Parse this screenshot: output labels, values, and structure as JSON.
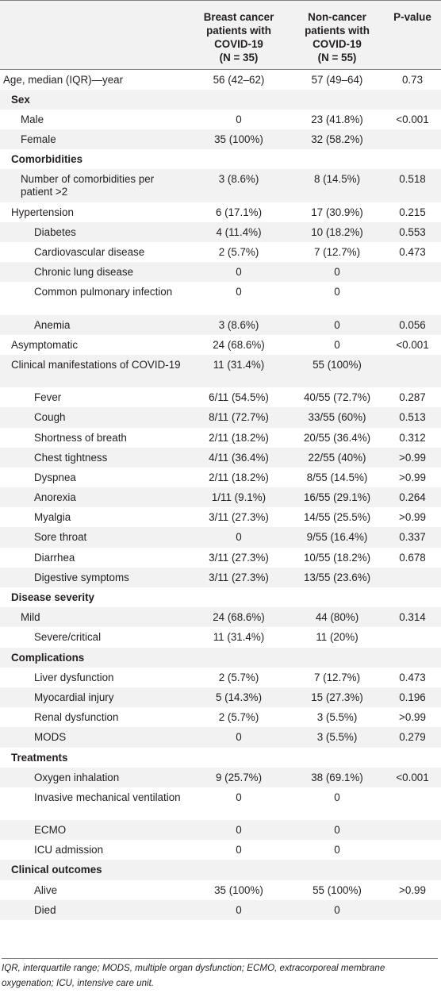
{
  "header": {
    "col_label": "",
    "col1": "Breast cancer patients with COVID-19",
    "col1_n": "(N = 35)",
    "col2": "Non-cancer patients with COVID-19",
    "col2_n": "(N = 55)",
    "col3": "P-value"
  },
  "rows": [
    {
      "label": "Age, median (IQR)—year",
      "bc": "56 (42–62)",
      "nc": "57 (49–64)",
      "p": "0.73"
    },
    {
      "label": "Sex",
      "bc": "",
      "nc": "",
      "p": ""
    },
    {
      "label": "Male",
      "bc": "0",
      "nc": "23 (41.8%)",
      "p": "<0.001"
    },
    {
      "label": "Female",
      "bc": "35 (100%)",
      "nc": "32 (58.2%)",
      "p": ""
    },
    {
      "label": "Comorbidities",
      "bc": "",
      "nc": "",
      "p": ""
    },
    {
      "label": "Number of comorbidities per patient >2",
      "bc": "3 (8.6%)",
      "nc": "8 (14.5%)",
      "p": "0.518"
    },
    {
      "label": "Hypertension",
      "bc": "6 (17.1%)",
      "nc": "17 (30.9%)",
      "p": "0.215"
    },
    {
      "label": "Diabetes",
      "bc": "4 (11.4%)",
      "nc": "10 (18.2%)",
      "p": "0.553"
    },
    {
      "label": "Cardiovascular disease",
      "bc": "2 (5.7%)",
      "nc": "7 (12.7%)",
      "p": "0.473"
    },
    {
      "label": "Chronic lung disease",
      "bc": "0",
      "nc": "0",
      "p": ""
    },
    {
      "label": "Common pulmonary infection",
      "bc": "0",
      "nc": "0",
      "p": ""
    },
    {
      "label": "Anemia",
      "bc": "3 (8.6%)",
      "nc": "0",
      "p": "0.056"
    },
    {
      "label": "Asymptomatic",
      "bc": "24 (68.6%)",
      "nc": "0",
      "p": "<0.001"
    },
    {
      "label": "Clinical manifestations of COVID-19",
      "bc": "11 (31.4%)",
      "nc": "55 (100%)",
      "p": ""
    },
    {
      "label": "Fever",
      "bc": "6/11 (54.5%)",
      "nc": "40/55 (72.7%)",
      "p": "0.287"
    },
    {
      "label": "Cough",
      "bc": "8/11 (72.7%)",
      "nc": "33/55 (60%)",
      "p": "0.513"
    },
    {
      "label": "Shortness of breath",
      "bc": "2/11 (18.2%)",
      "nc": "20/55 (36.4%)",
      "p": "0.312"
    },
    {
      "label": "Chest tightness",
      "bc": "4/11 (36.4%)",
      "nc": "22/55 (40%)",
      "p": ">0.99"
    },
    {
      "label": "Dyspnea",
      "bc": "2/11 (18.2%)",
      "nc": "8/55 (14.5%)",
      "p": ">0.99"
    },
    {
      "label": "Anorexia",
      "bc": "1/11 (9.1%)",
      "nc": "16/55 (29.1%)",
      "p": "0.264"
    },
    {
      "label": "Myalgia",
      "bc": "3/11 (27.3%)",
      "nc": "14/55 (25.5%)",
      "p": ">0.99"
    },
    {
      "label": "Sore throat",
      "bc": "0",
      "nc": "9/55 (16.4%)",
      "p": "0.337"
    },
    {
      "label": "Diarrhea",
      "bc": "3/11 (27.3%)",
      "nc": "10/55 (18.2%)",
      "p": "0.678"
    },
    {
      "label": "Digestive symptoms",
      "bc": "3/11 (27.3%)",
      "nc": "13/55 (23.6%)",
      "p": ""
    },
    {
      "label": "Disease severity",
      "bc": "",
      "nc": "",
      "p": ""
    },
    {
      "label": "Mild",
      "bc": "24 (68.6%)",
      "nc": "44 (80%)",
      "p": "0.314"
    },
    {
      "label": "Severe/critical",
      "bc": "11 (31.4%)",
      "nc": "11 (20%)",
      "p": ""
    },
    {
      "label": "Complications",
      "bc": "",
      "nc": "",
      "p": ""
    },
    {
      "label": "Liver dysfunction",
      "bc": "2 (5.7%)",
      "nc": "7 (12.7%)",
      "p": "0.473"
    },
    {
      "label": "Myocardial injury",
      "bc": "5 (14.3%)",
      "nc": "15 (27.3%)",
      "p": "0.196"
    },
    {
      "label": "Renal dysfunction",
      "bc": "2 (5.7%)",
      "nc": "3 (5.5%)",
      "p": ">0.99"
    },
    {
      "label": "MODS",
      "bc": "0",
      "nc": "3 (5.5%)",
      "p": "0.279"
    },
    {
      "label": "Treatments",
      "bc": "",
      "nc": "",
      "p": ""
    },
    {
      "label": "Oxygen inhalation",
      "bc": "9 (25.7%)",
      "nc": "38 (69.1%)",
      "p": "<0.001"
    },
    {
      "label": "Invasive mechanical ventilation",
      "bc": "0",
      "nc": "0",
      "p": ""
    },
    {
      "label": "ECMO",
      "bc": "0",
      "nc": "0",
      "p": ""
    },
    {
      "label": "ICU admission",
      "bc": "0",
      "nc": "0",
      "p": ""
    },
    {
      "label": "Clinical outcomes",
      "bc": "",
      "nc": "",
      "p": ""
    },
    {
      "label": "Alive",
      "bc": "35 (100%)",
      "nc": "55 (100%)",
      "p": ">0.99"
    },
    {
      "label": "Died",
      "bc": "0",
      "nc": "0",
      "p": ""
    }
  ],
  "footnote": "IQR, interquartile range; MODS, multiple organ dysfunction; ECMO, extracorporeal membrane oxygenation; ICU, intensive care unit."
}
